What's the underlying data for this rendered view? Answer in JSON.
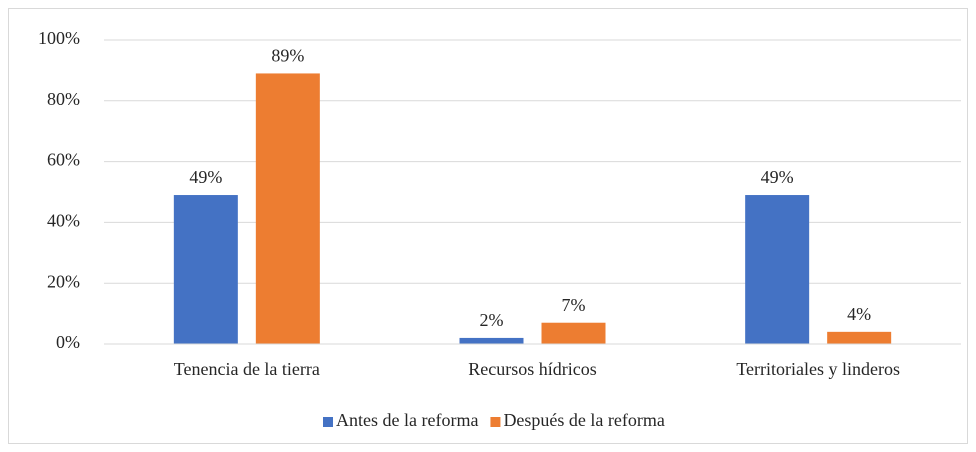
{
  "chart_data": {
    "type": "bar",
    "categories": [
      "Tenencia de la tierra",
      "Recursos hídricos",
      "Territoriales y linderos"
    ],
    "series": [
      {
        "name": "Antes de la reforma",
        "color": "#4472c4",
        "values": [
          49,
          2,
          49
        ],
        "value_labels": [
          "49%",
          "2%",
          "49%"
        ]
      },
      {
        "name": "Después de la reforma",
        "color": "#ed7d31",
        "values": [
          89,
          7,
          4
        ],
        "value_labels": [
          "89%",
          "7%",
          "4%"
        ]
      }
    ],
    "ylim": [
      0,
      100
    ],
    "yticks": [
      {
        "value": 0,
        "label": "0%"
      },
      {
        "value": 20,
        "label": "20%"
      },
      {
        "value": 40,
        "label": "40%"
      },
      {
        "value": 60,
        "label": "60%"
      },
      {
        "value": 80,
        "label": "80%"
      },
      {
        "value": 100,
        "label": "100%"
      }
    ],
    "grid": true,
    "legend": "bottom"
  }
}
